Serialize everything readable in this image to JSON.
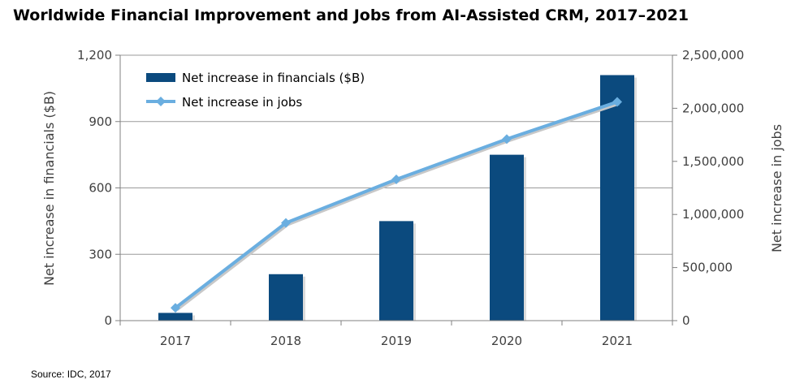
{
  "title": "Worldwide Financial Improvement and Jobs from AI-Assisted CRM, 2017–2021",
  "source": "Source: IDC, 2017",
  "colors": {
    "bar": "#0b4a7e",
    "line": "#6aaee0",
    "grid": "#9a9a9a",
    "axis": "#808080"
  },
  "chart_data": {
    "type": "bar",
    "categories": [
      "2017",
      "2018",
      "2019",
      "2020",
      "2021"
    ],
    "series": [
      {
        "name": "Net increase in financials ($B)",
        "type": "bar",
        "axis": "left",
        "values": [
          35,
          210,
          450,
          750,
          1110
        ]
      },
      {
        "name": "Net increase in jobs",
        "type": "line",
        "axis": "right",
        "marker": "diamond",
        "values": [
          120000,
          920000,
          1330000,
          1710000,
          2060000
        ]
      }
    ],
    "y_left": {
      "label": "Net increase in financials ($B)",
      "ylim": [
        0,
        1200
      ],
      "ticks": [
        0,
        300,
        600,
        900,
        1200
      ],
      "tick_labels": [
        "0",
        "300",
        "600",
        "900",
        "1,200"
      ]
    },
    "y_right": {
      "label": "Net increase in jobs",
      "ylim": [
        0,
        2500000
      ],
      "ticks": [
        0,
        500000,
        1000000,
        1500000,
        2000000,
        2500000
      ],
      "tick_labels": [
        "0",
        "500,000",
        "1,000,000",
        "1,500,000",
        "2,000,000",
        "2,500,000"
      ]
    },
    "grid": true,
    "legend": "top-left"
  }
}
